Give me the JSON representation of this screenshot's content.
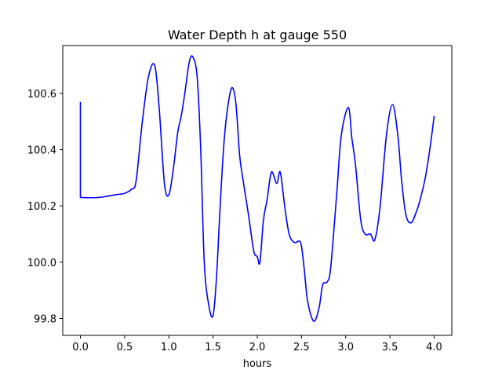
{
  "chart_data": {
    "type": "line",
    "title": "Water Depth h at gauge 550",
    "xlabel": "hours",
    "ylabel": "",
    "xlim": [
      -0.2,
      4.2
    ],
    "ylim": [
      99.74,
      100.77
    ],
    "x_ticks": [
      0.0,
      0.5,
      1.0,
      1.5,
      2.0,
      2.5,
      3.0,
      3.5,
      4.0
    ],
    "x_tick_labels": [
      "0.0",
      "0.5",
      "1.0",
      "1.5",
      "2.0",
      "2.5",
      "3.0",
      "3.5",
      "4.0"
    ],
    "y_ticks": [
      99.8,
      100.0,
      100.2,
      100.4,
      100.6
    ],
    "y_tick_labels": [
      "99.8",
      "100.0",
      "100.2",
      "100.4",
      "100.6"
    ],
    "grid": false,
    "legend": "none",
    "series": [
      {
        "color": "#0000ff",
        "x": [
          0.0,
          0.0,
          0.2,
          0.4,
          0.5,
          0.58,
          0.63,
          0.7,
          0.77,
          0.84,
          0.89,
          0.95,
          1.0,
          1.05,
          1.1,
          1.14,
          1.18,
          1.23,
          1.27,
          1.32,
          1.36,
          1.4,
          1.45,
          1.5,
          1.54,
          1.58,
          1.63,
          1.68,
          1.72,
          1.76,
          1.8,
          1.84,
          1.9,
          1.96,
          2.0,
          2.03,
          2.07,
          2.11,
          2.16,
          2.22,
          2.26,
          2.31,
          2.36,
          2.42,
          2.49,
          2.53,
          2.57,
          2.64,
          2.7,
          2.74,
          2.79,
          2.83,
          2.9,
          2.95,
          3.03,
          3.07,
          3.11,
          3.17,
          3.22,
          3.28,
          3.33,
          3.39,
          3.46,
          3.53,
          3.59,
          3.63,
          3.68,
          3.74,
          3.8,
          3.84,
          3.9,
          3.96,
          4.0
        ],
        "y": [
          100.57,
          100.23,
          100.23,
          100.24,
          100.245,
          100.26,
          100.29,
          100.5,
          100.66,
          100.7,
          100.55,
          100.28,
          100.24,
          100.33,
          100.46,
          100.52,
          100.6,
          100.71,
          100.73,
          100.66,
          100.4,
          100.0,
          99.85,
          99.81,
          99.95,
          100.2,
          100.45,
          100.58,
          100.62,
          100.56,
          100.38,
          100.29,
          100.17,
          100.04,
          100.02,
          100.0,
          100.15,
          100.22,
          100.32,
          100.28,
          100.32,
          100.2,
          100.1,
          100.07,
          100.07,
          99.98,
          99.86,
          99.79,
          99.84,
          99.92,
          99.93,
          99.98,
          100.25,
          100.45,
          100.55,
          100.44,
          100.35,
          100.15,
          100.1,
          100.1,
          100.08,
          100.2,
          100.45,
          100.56,
          100.45,
          100.3,
          100.17,
          100.14,
          100.18,
          100.22,
          100.3,
          100.42,
          100.52
        ]
      }
    ]
  }
}
